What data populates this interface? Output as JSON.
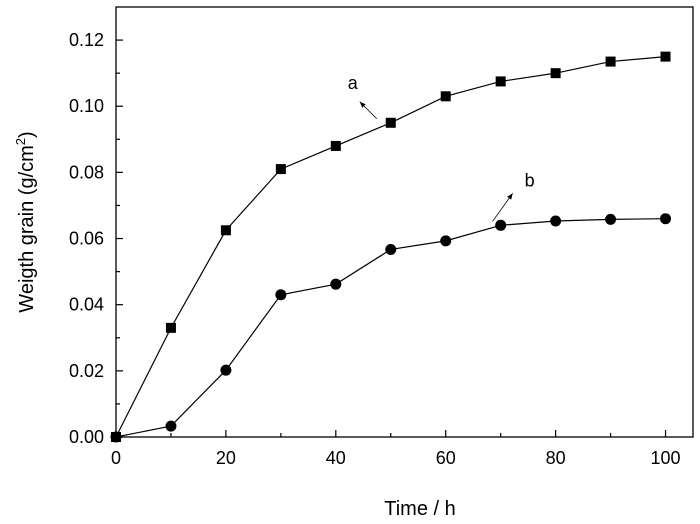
{
  "chart_data": {
    "type": "line",
    "xlabel": "Time / h",
    "ylabel": "Weigth grain (g/cm2)",
    "ylabel_main": "Weigth grain (g/cm",
    "ylabel_sup": "2",
    "ylabel_tail": ")",
    "xlim": [
      0,
      105
    ],
    "ylim": [
      0,
      0.13
    ],
    "x_ticks": [
      0,
      20,
      40,
      60,
      80,
      100
    ],
    "x_tick_labels": [
      "0",
      "20",
      "40",
      "60",
      "80",
      "100"
    ],
    "y_ticks": [
      0,
      0.02,
      0.04,
      0.06,
      0.08,
      0.1,
      0.12
    ],
    "y_tick_labels": [
      "0.00",
      "0.02",
      "0.04",
      "0.06",
      "0.08",
      "0.10",
      "0.12"
    ],
    "grid": false,
    "series": [
      {
        "label": "a",
        "marker": "square",
        "x": [
          0,
          10,
          20,
          30,
          40,
          50,
          60,
          70,
          80,
          90,
          100
        ],
        "y": [
          0,
          0.033,
          0.0625,
          0.081,
          0.088,
          0.095,
          0.103,
          0.1075,
          0.11,
          0.1135,
          0.115
        ]
      },
      {
        "label": "b",
        "marker": "circle",
        "x": [
          0,
          10,
          20,
          30,
          40,
          50,
          60,
          70,
          80,
          90,
          100
        ],
        "y": [
          0,
          0.0033,
          0.0202,
          0.043,
          0.0462,
          0.0567,
          0.0593,
          0.064,
          0.0653,
          0.0658,
          0.066
        ]
      }
    ],
    "annotations": [
      {
        "text": "a",
        "series": 0,
        "point_index": 5
      },
      {
        "text": "b",
        "series": 1,
        "point_index": 7
      }
    ],
    "colors": {
      "line": "#000000",
      "marker": "#000000",
      "background": "#ffffff"
    }
  }
}
